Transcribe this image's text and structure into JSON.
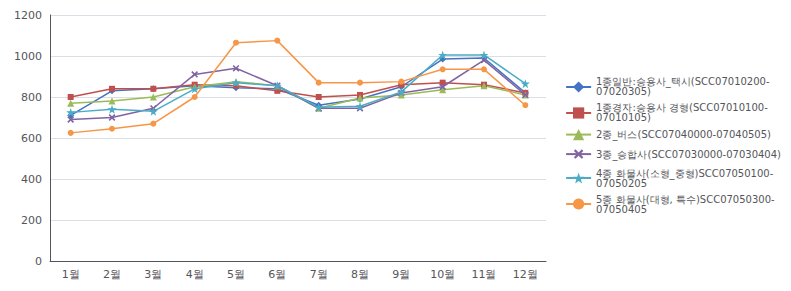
{
  "chart_data": {
    "type": "line",
    "categories": [
      "1월",
      "2월",
      "3월",
      "4월",
      "5월",
      "6월",
      "7월",
      "8월",
      "9월",
      "10월",
      "11월",
      "12월"
    ],
    "series": [
      {
        "name": "1종일반:승용사_택시(SCC07010200-\n07020305)",
        "color": "#4472C4",
        "marker": "diamond",
        "values": [
          710,
          830,
          840,
          855,
          845,
          840,
          760,
          790,
          850,
          985,
          990,
          820
        ]
      },
      {
        "name": "1종경자:승용사 경형(SCC07010100-\n07010105)",
        "color": "#C0504D",
        "marker": "square",
        "values": [
          800,
          840,
          840,
          860,
          855,
          830,
          800,
          810,
          860,
          870,
          860,
          820
        ]
      },
      {
        "name": "2종_버스(SCC07040000-07040505)",
        "color": "#9BBB59",
        "marker": "triangle",
        "values": [
          770,
          780,
          800,
          850,
          875,
          855,
          745,
          795,
          810,
          835,
          855,
          810
        ]
      },
      {
        "name": "3종_승합사(SCC07030000-07030404)",
        "color": "#8064A2",
        "marker": "x",
        "values": [
          690,
          700,
          745,
          910,
          940,
          855,
          745,
          745,
          820,
          850,
          980,
          810
        ]
      },
      {
        "name": "4종 화물사(소형_중형)SCC07050100-\n07050205",
        "color": "#4BACC6",
        "marker": "star",
        "values": [
          725,
          740,
          730,
          840,
          870,
          855,
          750,
          755,
          825,
          1005,
          1005,
          865
        ]
      },
      {
        "name": "5종 화물사(대형, 특수)SCC07050300-\n07050405",
        "color": "#F79646",
        "marker": "circle",
        "values": [
          625,
          645,
          670,
          800,
          1065,
          1075,
          870,
          870,
          875,
          935,
          935,
          760
        ]
      }
    ],
    "ylim": [
      0,
      1200
    ],
    "yticks": [
      0,
      200,
      400,
      600,
      800,
      1000,
      1200
    ],
    "grid": true,
    "legend": "right"
  }
}
